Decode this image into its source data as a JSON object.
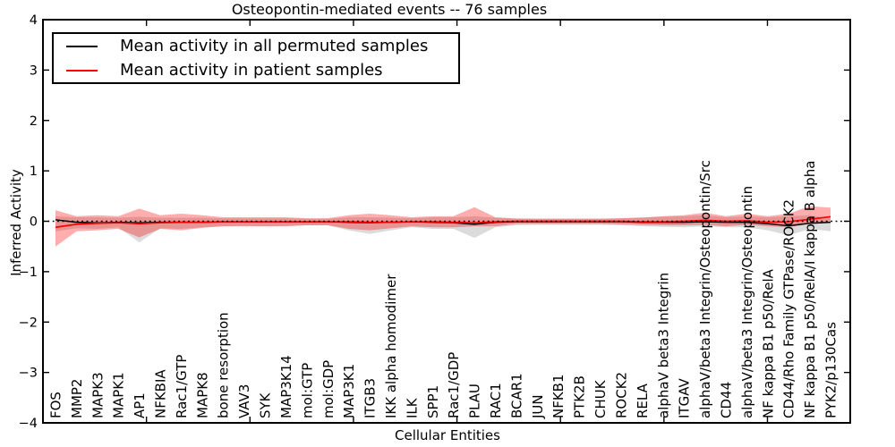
{
  "figure": {
    "title": "Osteopontin-mediated events -- 76 samples",
    "xlabel": "Cellular Entities",
    "ylabel": "Inferred Activity"
  },
  "legend": {
    "items": [
      {
        "label": "Mean activity in all permuted samples",
        "color": "#000000"
      },
      {
        "label": "Mean activity in patient samples",
        "color": "#ff0000"
      }
    ]
  },
  "chart_data": {
    "type": "line",
    "title": "Osteopontin-mediated events -- 76 samples",
    "xlabel": "Cellular Entities",
    "ylabel": "Inferred Activity",
    "ylim": [
      -4,
      4
    ],
    "yticks": [
      -4,
      -3,
      -2,
      -1,
      0,
      1,
      2,
      3,
      4
    ],
    "xlim": [
      0,
      39
    ],
    "xtick_positions": [
      5,
      10,
      15,
      20,
      25,
      30,
      35
    ],
    "grid": false,
    "legend_position": "upper left",
    "zero_line": {
      "y": 0,
      "style": "dotted",
      "color": "#000000"
    },
    "categories": [
      "FOS",
      "MMP2",
      "MAPK3",
      "MAPK1",
      "AP1",
      "NFKBIA",
      "Rac1/GTP",
      "MAPK8",
      "bone resorption",
      "VAV3",
      "SYK",
      "MAP3K14",
      "mol:GTP",
      "mol:GDP",
      "MAP3K1",
      "ITGB3",
      "IKK alpha homodimer",
      "ILK",
      "SPP1",
      "Rac1/GDP",
      "PLAU",
      "RAC1",
      "BCAR1",
      "JUN",
      "NFKB1",
      "PTK2B",
      "CHUK",
      "ROCK2",
      "RELA",
      "alphaV beta3 Integrin",
      "ITGAV",
      "alphaV/beta3 Integrin/Osteopontin/Src",
      "CD44",
      "alphaV/beta3 Integrin/Osteopontin",
      "NF kappa B1 p50/RelA",
      "CD44/Rho Family GTPase/ROCK2",
      "NF kappa B1 p50/RelA/I kappa B alpha",
      "PYK2/p130Cas"
    ],
    "series": [
      {
        "name": "Mean activity in all permuted samples",
        "color": "#000000",
        "values": [
          0.03,
          -0.02,
          -0.03,
          -0.02,
          -0.03,
          -0.02,
          -0.02,
          -0.02,
          -0.01,
          -0.01,
          -0.01,
          -0.01,
          -0.01,
          -0.01,
          -0.02,
          -0.03,
          -0.02,
          -0.01,
          -0.02,
          -0.03,
          -0.06,
          -0.02,
          -0.01,
          -0.01,
          -0.01,
          -0.01,
          -0.01,
          -0.01,
          -0.02,
          -0.02,
          -0.02,
          -0.01,
          -0.02,
          -0.02,
          -0.05,
          -0.09,
          -0.04,
          -0.02
        ]
      },
      {
        "name": "Mean activity in patient samples",
        "color": "#ff0000",
        "values": [
          -0.12,
          -0.06,
          -0.04,
          -0.03,
          -0.05,
          -0.03,
          -0.02,
          -0.02,
          -0.01,
          -0.01,
          -0.01,
          -0.01,
          -0.01,
          -0.01,
          -0.01,
          -0.02,
          -0.02,
          -0.01,
          -0.01,
          -0.02,
          -0.03,
          -0.01,
          0,
          0,
          0,
          0,
          0,
          0,
          -0.01,
          -0.01,
          0,
          0.02,
          0,
          0.01,
          -0.02,
          -0.01,
          0.04,
          0.09
        ]
      }
    ],
    "bands": [
      {
        "name": "permuted-samples-range",
        "fill": "#999999",
        "opacity": 0.35,
        "upper": [
          0.1,
          0.08,
          0.08,
          0.07,
          0.09,
          0.07,
          0.07,
          0.07,
          0.06,
          0.06,
          0.06,
          0.06,
          0.05,
          0.05,
          0.08,
          0.08,
          0.07,
          0.06,
          0.08,
          0.08,
          0.1,
          0.07,
          0.06,
          0.05,
          0.05,
          0.05,
          0.05,
          0.06,
          0.08,
          0.09,
          0.1,
          0.12,
          0.08,
          0.1,
          0.08,
          0.1,
          0.12,
          0.06
        ],
        "lower": [
          -0.2,
          -0.14,
          -0.15,
          -0.12,
          -0.42,
          -0.14,
          -0.15,
          -0.12,
          -0.1,
          -0.09,
          -0.1,
          -0.09,
          -0.08,
          -0.08,
          -0.18,
          -0.25,
          -0.18,
          -0.12,
          -0.15,
          -0.15,
          -0.33,
          -0.12,
          -0.08,
          -0.07,
          -0.07,
          -0.07,
          -0.07,
          -0.08,
          -0.1,
          -0.11,
          -0.12,
          -0.1,
          -0.12,
          -0.12,
          -0.18,
          -0.28,
          -0.15,
          -0.2
        ]
      },
      {
        "name": "patient-samples-range",
        "fill": "#ff0000",
        "opacity": 0.32,
        "upper": [
          0.22,
          0.1,
          0.12,
          0.1,
          0.25,
          0.12,
          0.15,
          0.12,
          0.08,
          0.08,
          0.08,
          0.08,
          0.06,
          0.06,
          0.12,
          0.15,
          0.12,
          0.08,
          0.1,
          0.1,
          0.28,
          0.08,
          0.05,
          0.05,
          0.05,
          0.05,
          0.05,
          0.06,
          0.07,
          0.1,
          0.12,
          0.17,
          0.1,
          0.15,
          0.1,
          0.15,
          0.3,
          0.27
        ],
        "lower": [
          -0.5,
          -0.2,
          -0.18,
          -0.15,
          -0.32,
          -0.15,
          -0.18,
          -0.13,
          -0.1,
          -0.1,
          -0.1,
          -0.1,
          -0.08,
          -0.08,
          -0.15,
          -0.18,
          -0.14,
          -0.1,
          -0.12,
          -0.12,
          -0.1,
          -0.1,
          -0.05,
          -0.05,
          -0.05,
          -0.05,
          -0.05,
          -0.06,
          -0.07,
          -0.08,
          -0.08,
          -0.07,
          -0.1,
          -0.07,
          -0.1,
          -0.12,
          -0.05,
          0.0
        ]
      }
    ]
  }
}
